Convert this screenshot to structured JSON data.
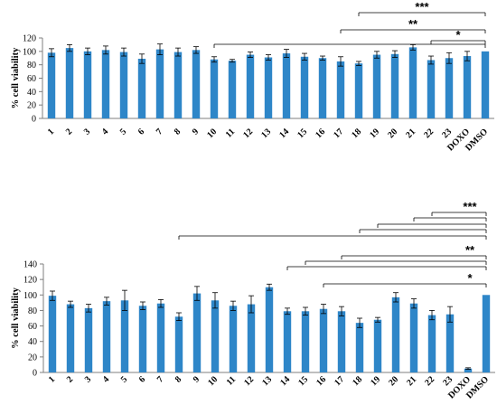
{
  "chart_data": [
    {
      "type": "bar",
      "ylabel": "% cell viability",
      "ylim": [
        0,
        120
      ],
      "yticks": [
        0,
        20,
        40,
        60,
        80,
        100,
        120
      ],
      "categories": [
        "1",
        "2",
        "3",
        "4",
        "5",
        "6",
        "7",
        "8",
        "9",
        "10",
        "11",
        "12",
        "13",
        "14",
        "15",
        "16",
        "17",
        "18",
        "19",
        "20",
        "21",
        "22",
        "23",
        "DOXO",
        "DMSO"
      ],
      "values": [
        98,
        105,
        100,
        102,
        99,
        89,
        103,
        99,
        102,
        88,
        86,
        95,
        91,
        97,
        92,
        90,
        85,
        82,
        95,
        96,
        106,
        87,
        90,
        93,
        100
      ],
      "errors": [
        6,
        5,
        5,
        6,
        6,
        7,
        8,
        6,
        5,
        4,
        2,
        4,
        4,
        6,
        5,
        3,
        7,
        3,
        5,
        5,
        4,
        6,
        8,
        7,
        0
      ],
      "color": "#2e86c8",
      "significance": [
        {
          "label": "***",
          "from": "18",
          "to": "DMSO"
        },
        {
          "label": "**",
          "from": "17",
          "to": "DMSO"
        },
        {
          "label": "*",
          "from": "22",
          "to": "DMSO"
        },
        {
          "label": "",
          "from": "10",
          "to": "DMSO"
        }
      ]
    },
    {
      "type": "bar",
      "ylabel": "% cell viability",
      "ylim": [
        0,
        140
      ],
      "yticks": [
        0,
        20,
        40,
        60,
        80,
        100,
        120,
        140
      ],
      "categories": [
        "1",
        "2",
        "3",
        "4",
        "5",
        "6",
        "7",
        "8",
        "9",
        "10",
        "11",
        "12",
        "13",
        "14",
        "15",
        "16",
        "17",
        "18",
        "19",
        "20",
        "21",
        "22",
        "23",
        "DOXO",
        "DMSO"
      ],
      "values": [
        99,
        88,
        83,
        92,
        93,
        86,
        89,
        72,
        102,
        93,
        86,
        88,
        110,
        79,
        79,
        82,
        79,
        64,
        68,
        97,
        89,
        74,
        75,
        5,
        100
      ],
      "errors": [
        6,
        4,
        5,
        5,
        13,
        5,
        5,
        5,
        9,
        10,
        6,
        11,
        4,
        4,
        5,
        6,
        6,
        6,
        3,
        6,
        6,
        6,
        10,
        1,
        0
      ],
      "color": "#2e86c8",
      "significance": [
        {
          "label": "***",
          "from": "22",
          "to": "DMSO"
        },
        {
          "label": "",
          "from": "21",
          "to": "DMSO"
        },
        {
          "label": "",
          "from": "19",
          "to": "DMSO"
        },
        {
          "label": "",
          "from": "18",
          "to": "DMSO"
        },
        {
          "label": "",
          "from": "8",
          "to": "DMSO"
        },
        {
          "label": "**",
          "from": "17",
          "to": "DMSO"
        },
        {
          "label": "",
          "from": "15",
          "to": "DMSO"
        },
        {
          "label": "",
          "from": "14",
          "to": "DMSO"
        },
        {
          "label": "*",
          "from": "16",
          "to": "DMSO"
        }
      ]
    }
  ]
}
